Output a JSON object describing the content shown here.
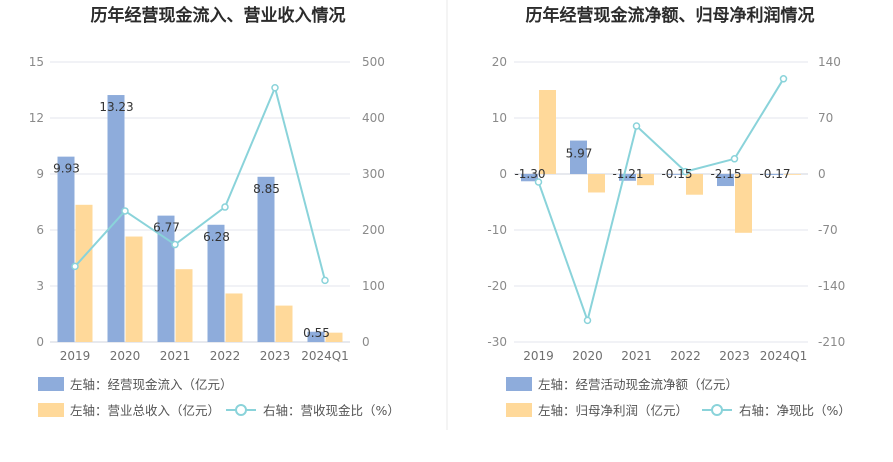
{
  "colors": {
    "bar_blue": "#8eacdb",
    "bar_orange": "#ffd99a",
    "line_teal": "#8ad3da",
    "grid": "#e3e6ee",
    "divider": "#e8e8e8"
  },
  "chart_data": [
    {
      "type": "bar",
      "title": "历年经营现金流入、营业收入情况",
      "categories": [
        "2019",
        "2020",
        "2021",
        "2022",
        "2023",
        "2024Q1"
      ],
      "left_axis": {
        "ticks": [
          "0",
          "3",
          "6",
          "9",
          "12",
          "15"
        ],
        "ylim": [
          0,
          15
        ]
      },
      "right_axis": {
        "ticks": [
          "0",
          "100",
          "200",
          "300",
          "400",
          "500"
        ],
        "ylim": [
          0,
          500
        ]
      },
      "grid": true,
      "legend_position": "bottom-left",
      "series": [
        {
          "name": "左轴：经营现金流入（亿元）",
          "kind": "bar",
          "axis": "left",
          "values": [
            9.93,
            13.23,
            6.77,
            6.28,
            8.85,
            0.55
          ],
          "labels": [
            "9.93",
            "13.23",
            "6.77",
            "6.28",
            "8.85",
            "0.55"
          ]
        },
        {
          "name": "左轴：营业总收入（亿元）",
          "kind": "bar",
          "axis": "left",
          "values": [
            7.35,
            5.65,
            3.9,
            2.6,
            1.95,
            0.5
          ]
        },
        {
          "name": "右轴：营收现金比（%）",
          "kind": "line",
          "axis": "right",
          "values": [
            135,
            234,
            174,
            241,
            454,
            110
          ]
        }
      ]
    },
    {
      "type": "bar",
      "title": "历年经营现金流净额、归母净利润情况",
      "categories": [
        "2019",
        "2020",
        "2021",
        "2022",
        "2023",
        "2024Q1"
      ],
      "left_axis": {
        "ticks": [
          "-30",
          "-20",
          "-10",
          "0",
          "10",
          "20"
        ],
        "ylim": [
          -30,
          20
        ]
      },
      "right_axis": {
        "ticks": [
          "-210",
          "-140",
          "-70",
          "0",
          "70",
          "140"
        ],
        "ylim": [
          -210,
          140
        ]
      },
      "grid": true,
      "legend_position": "bottom-left",
      "series": [
        {
          "name": "左轴：经营活动现金流净额（亿元）",
          "kind": "bar",
          "axis": "left",
          "values": [
            -1.3,
            5.97,
            -1.21,
            -0.15,
            -2.15,
            -0.17
          ],
          "labels": [
            "-1.30",
            "5.97",
            "-1.21",
            "-0.15",
            "-2.15",
            "-0.17"
          ]
        },
        {
          "name": "左轴：归母净利润（亿元）",
          "kind": "bar",
          "axis": "left",
          "values": [
            15.0,
            -3.3,
            -2.0,
            -3.7,
            -10.5,
            -0.1
          ]
        },
        {
          "name": "右轴：净现比（%）",
          "kind": "line",
          "axis": "right",
          "values": [
            -10,
            -183,
            60,
            3,
            19,
            119
          ]
        }
      ]
    }
  ]
}
